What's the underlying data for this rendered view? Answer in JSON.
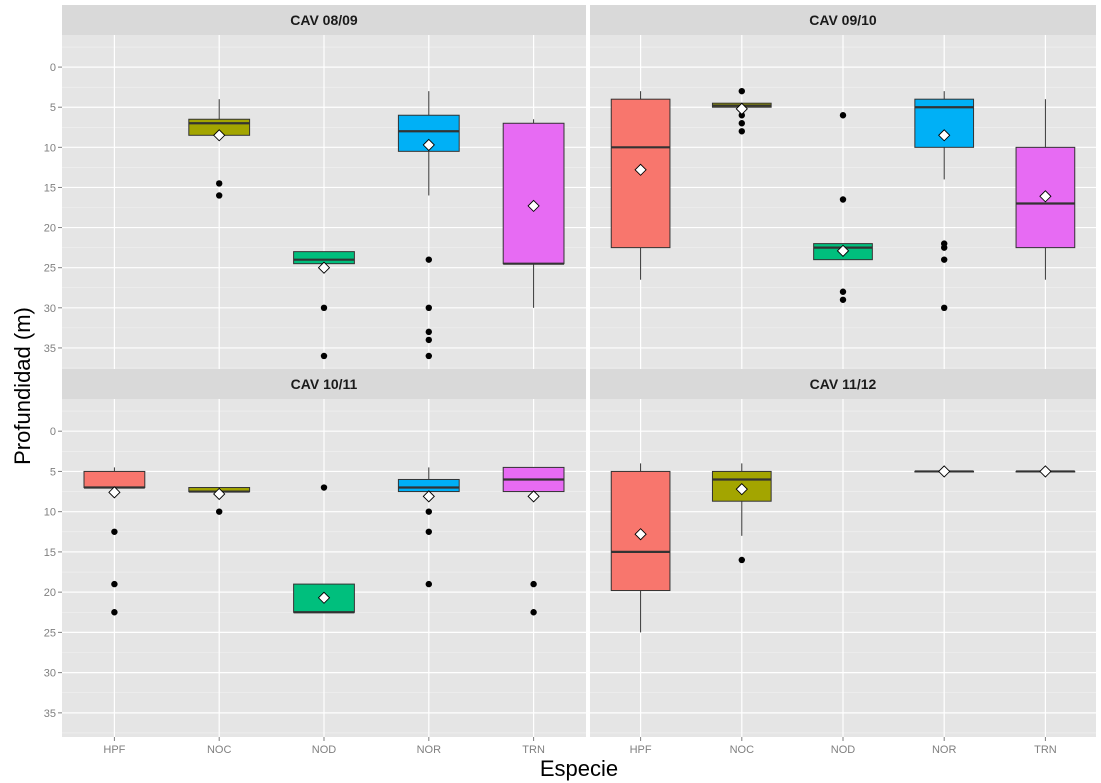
{
  "chart_data": {
    "type": "boxplot",
    "xlabel": "Especie",
    "ylabel": "Profundidad (m)",
    "categories": [
      "HPF",
      "NOC",
      "NOD",
      "NOR",
      "TRN"
    ],
    "colors": {
      "HPF": "#F8766D",
      "NOC": "#A3A500",
      "NOD": "#00BF7D",
      "NOR": "#00B0F6",
      "TRN": "#E76BF3"
    },
    "y_axis": {
      "reversed": true,
      "ylim": [
        -4,
        38
      ],
      "ticks": [
        0,
        5,
        10,
        15,
        20,
        25,
        30,
        35
      ]
    },
    "mean_marker": "white diamond",
    "panels": [
      {
        "title": "CAV 08/09",
        "boxes": [
          {
            "species": "NOC",
            "q1": 6.5,
            "median": 7,
            "q3": 8.5,
            "whisker_low": 4,
            "whisker_high": 8.5,
            "mean": 8.5,
            "outliers": [
              14.5,
              16
            ]
          },
          {
            "species": "NOD",
            "q1": 23,
            "median": 24,
            "q3": 24.5,
            "whisker_low": 23,
            "whisker_high": 24.5,
            "mean": 25,
            "outliers": [
              30,
              36
            ]
          },
          {
            "species": "NOR",
            "q1": 6,
            "median": 8,
            "q3": 10.5,
            "whisker_low": 3,
            "whisker_high": 16,
            "mean": 9.7,
            "outliers": [
              24,
              30,
              33,
              34,
              36
            ]
          },
          {
            "species": "TRN",
            "q1": 7,
            "median": 24.5,
            "q3": 24.5,
            "whisker_low": 6.5,
            "whisker_high": 30,
            "mean": 17.3,
            "outliers": []
          }
        ]
      },
      {
        "title": "CAV 09/10",
        "boxes": [
          {
            "species": "HPF",
            "q1": 4,
            "median": 10,
            "q3": 22.5,
            "whisker_low": 3,
            "whisker_high": 26.5,
            "mean": 12.8,
            "outliers": []
          },
          {
            "species": "NOC",
            "q1": 4.5,
            "median": 4.8,
            "q3": 5,
            "whisker_low": 4.5,
            "whisker_high": 5,
            "mean": 5.2,
            "outliers": [
              3,
              6,
              7,
              8
            ]
          },
          {
            "species": "NOD",
            "q1": 22,
            "median": 22.5,
            "q3": 24,
            "whisker_low": 22,
            "whisker_high": 24,
            "mean": 22.9,
            "outliers": [
              6,
              16.5,
              28,
              29
            ]
          },
          {
            "species": "NOR",
            "q1": 4,
            "median": 5,
            "q3": 10,
            "whisker_low": 3,
            "whisker_high": 14,
            "mean": 8.5,
            "outliers": [
              22,
              22.5,
              24,
              30
            ]
          },
          {
            "species": "TRN",
            "q1": 10,
            "median": 17,
            "q3": 22.5,
            "whisker_low": 4,
            "whisker_high": 26.5,
            "mean": 16.1,
            "outliers": []
          }
        ]
      },
      {
        "title": "CAV 10/11",
        "boxes": [
          {
            "species": "HPF",
            "q1": 5,
            "median": 7,
            "q3": 7,
            "whisker_low": 4.5,
            "whisker_high": 7,
            "mean": 7.6,
            "outliers": [
              12.5,
              19,
              22.5
            ]
          },
          {
            "species": "NOC",
            "q1": 7,
            "median": 7.5,
            "q3": 7.5,
            "whisker_low": 7,
            "whisker_high": 7.5,
            "mean": 7.8,
            "outliers": [
              10
            ]
          },
          {
            "species": "NOD",
            "q1": 19,
            "median": 22.5,
            "q3": 22.5,
            "whisker_low": 19,
            "whisker_high": 22.5,
            "mean": 20.7,
            "outliers": [
              7
            ]
          },
          {
            "species": "NOR",
            "q1": 6,
            "median": 7,
            "q3": 7.5,
            "whisker_low": 4.5,
            "whisker_high": 7.5,
            "mean": 8.1,
            "outliers": [
              10,
              12.5,
              19
            ]
          },
          {
            "species": "TRN",
            "q1": 4.5,
            "median": 6,
            "q3": 7.5,
            "whisker_low": 4.5,
            "whisker_high": 7.5,
            "mean": 8.1,
            "outliers": [
              19,
              22.5
            ]
          }
        ]
      },
      {
        "title": "CAV 11/12",
        "boxes": [
          {
            "species": "HPF",
            "q1": 5,
            "median": 15,
            "q3": 19.8,
            "whisker_low": 4,
            "whisker_high": 25,
            "mean": 12.8,
            "outliers": []
          },
          {
            "species": "NOC",
            "q1": 5,
            "median": 6,
            "q3": 8.7,
            "whisker_low": 4,
            "whisker_high": 13,
            "mean": 7.2,
            "outliers": [
              16
            ]
          },
          {
            "species": "NOR",
            "q1": 5,
            "median": 5,
            "q3": 5,
            "whisker_low": 5,
            "whisker_high": 5,
            "mean": 5,
            "outliers": []
          },
          {
            "species": "TRN",
            "q1": 5,
            "median": 5,
            "q3": 5,
            "whisker_low": 5,
            "whisker_high": 5,
            "mean": 5,
            "outliers": []
          }
        ]
      }
    ]
  }
}
